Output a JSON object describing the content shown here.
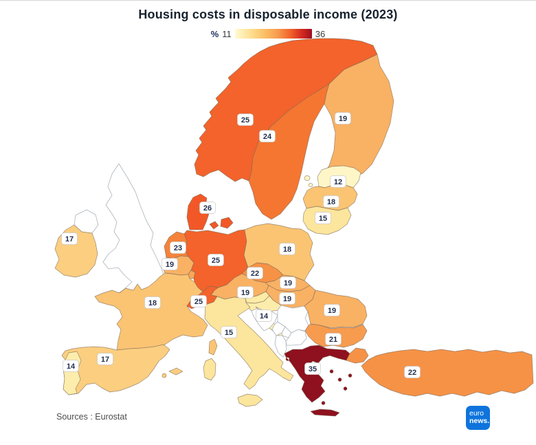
{
  "title": "Housing costs in disposable income (2023)",
  "legend": {
    "unit": "%",
    "min": "11",
    "max": "36"
  },
  "source": "Sources : Eurostat",
  "logo": {
    "line1": "euro",
    "line2": "news."
  },
  "chart_data": {
    "type": "choropleth",
    "title": "Housing costs in disposable income (2023)",
    "unit": "%",
    "scale": {
      "min": 11,
      "max": 36,
      "palette_ends": [
        "#FFFBD3",
        "#9E0E20"
      ]
    },
    "categories": [
      "Norway",
      "Sweden",
      "Finland",
      "Estonia",
      "Latvia",
      "Lithuania",
      "Denmark",
      "Ireland",
      "Netherlands",
      "Belgium",
      "Germany",
      "Poland",
      "Czechia",
      "Slovakia",
      "Austria",
      "Hungary",
      "Romania",
      "Bulgaria",
      "France",
      "Switzerland",
      "Italy",
      "Croatia",
      "Spain",
      "Portugal",
      "Greece",
      "Turkey"
    ],
    "values": [
      25,
      24,
      19,
      12,
      18,
      15,
      26,
      17,
      23,
      19,
      25,
      18,
      22,
      19,
      19,
      19,
      19,
      21,
      18,
      25,
      15,
      14,
      17,
      14,
      35,
      22
    ],
    "source_note": "Sources : Eurostat"
  },
  "map": {
    "no_data_fill": "#ffffff",
    "countries": [
      {
        "id": "norway",
        "value": "25",
        "fill": "#F3632B"
      },
      {
        "id": "sweden",
        "value": "24",
        "fill": "#F47631"
      },
      {
        "id": "finland",
        "value": "19",
        "fill": "#F9B164"
      },
      {
        "id": "estonia",
        "value": "12",
        "fill": "#FEF6C6"
      },
      {
        "id": "latvia",
        "value": "18",
        "fill": "#FAC473"
      },
      {
        "id": "lithuania",
        "value": "15",
        "fill": "#FCE59C"
      },
      {
        "id": "denmark",
        "value": "26",
        "fill": "#F25827"
      },
      {
        "id": "ireland",
        "value": "17",
        "fill": "#FBCE80"
      },
      {
        "id": "netherlands",
        "value": "23",
        "fill": "#F5833A"
      },
      {
        "id": "belgium",
        "value": "19",
        "fill": "#F9B164"
      },
      {
        "id": "germany",
        "value": "25",
        "fill": "#F3632B"
      },
      {
        "id": "poland",
        "value": "18",
        "fill": "#FAC473"
      },
      {
        "id": "czechia",
        "value": "22",
        "fill": "#F69246"
      },
      {
        "id": "slovakia",
        "value": "19",
        "fill": "#F9B164"
      },
      {
        "id": "austria",
        "value": "19",
        "fill": "#F9B164"
      },
      {
        "id": "hungary",
        "value": "19",
        "fill": "#F9B164"
      },
      {
        "id": "romania",
        "value": "19",
        "fill": "#F9B164"
      },
      {
        "id": "bulgaria",
        "value": "21",
        "fill": "#F79C4F"
      },
      {
        "id": "france",
        "value": "18",
        "fill": "#FAC473"
      },
      {
        "id": "switzerland",
        "value": "25",
        "fill": "#F3632B"
      },
      {
        "id": "italy",
        "value": "15",
        "fill": "#FCE59C"
      },
      {
        "id": "croatia",
        "value": "14",
        "fill": "#FDEDAC"
      },
      {
        "id": "spain",
        "value": "17",
        "fill": "#FBCE80"
      },
      {
        "id": "portugal",
        "value": "14",
        "fill": "#FDEDAC"
      },
      {
        "id": "greece",
        "value": "35",
        "fill": "#8F101F"
      },
      {
        "id": "turkey",
        "value": "22",
        "fill": "#F69246"
      },
      {
        "id": "slovenia",
        "value": null,
        "fill": "#FDEBA6"
      },
      {
        "id": "luxembourg",
        "value": null,
        "fill": "#F8A758"
      },
      {
        "id": "united-kingdom",
        "value": null,
        "fill": null,
        "no_data": true
      },
      {
        "id": "bosnia",
        "value": null,
        "fill": null,
        "no_data": true
      },
      {
        "id": "serbia",
        "value": null,
        "fill": null,
        "no_data": true
      },
      {
        "id": "montenegro",
        "value": null,
        "fill": null,
        "no_data": true
      },
      {
        "id": "kosovo",
        "value": null,
        "fill": null,
        "no_data": true
      },
      {
        "id": "albania",
        "value": null,
        "fill": null,
        "no_data": true
      },
      {
        "id": "north-macedonia",
        "value": null,
        "fill": null,
        "no_data": true
      }
    ]
  }
}
